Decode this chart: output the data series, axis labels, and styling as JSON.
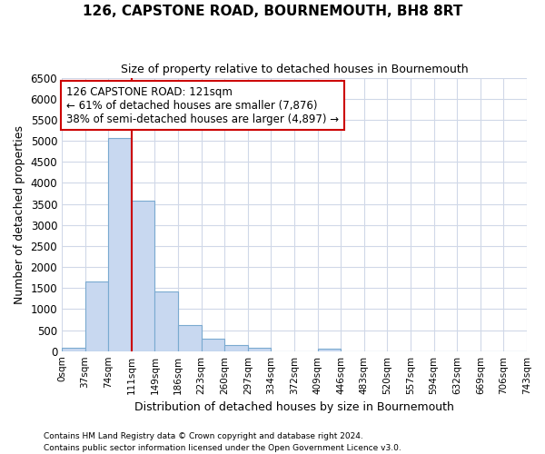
{
  "title": "126, CAPSTONE ROAD, BOURNEMOUTH, BH8 8RT",
  "subtitle": "Size of property relative to detached houses in Bournemouth",
  "xlabel": "Distribution of detached houses by size in Bournemouth",
  "ylabel": "Number of detached properties",
  "bin_labels": [
    "0sqm",
    "37sqm",
    "74sqm",
    "111sqm",
    "149sqm",
    "186sqm",
    "223sqm",
    "260sqm",
    "297sqm",
    "334sqm",
    "372sqm",
    "409sqm",
    "446sqm",
    "483sqm",
    "520sqm",
    "557sqm",
    "594sqm",
    "632sqm",
    "669sqm",
    "706sqm",
    "743sqm"
  ],
  "bar_heights": [
    75,
    1660,
    5060,
    3580,
    1420,
    620,
    300,
    150,
    70,
    0,
    0,
    60,
    0,
    0,
    0,
    0,
    0,
    0,
    0,
    0
  ],
  "bar_color": "#c8d8f0",
  "bar_edge_color": "#7aaad0",
  "vline_x_bin": 3,
  "vline_color": "#cc0000",
  "annotation_line1": "126 CAPSTONE ROAD: 121sqm",
  "annotation_line2": "← 61% of detached houses are smaller (7,876)",
  "annotation_line3": "38% of semi-detached houses are larger (4,897) →",
  "annotation_box_color": "#ffffff",
  "annotation_border_color": "#cc0000",
  "ylim": [
    0,
    6500
  ],
  "yticks": [
    0,
    500,
    1000,
    1500,
    2000,
    2500,
    3000,
    3500,
    4000,
    4500,
    5000,
    5500,
    6000,
    6500
  ],
  "footer_line1": "Contains HM Land Registry data © Crown copyright and database right 2024.",
  "footer_line2": "Contains public sector information licensed under the Open Government Licence v3.0.",
  "plot_bg_color": "#ffffff",
  "fig_bg_color": "#ffffff",
  "grid_color": "#d0d8e8"
}
